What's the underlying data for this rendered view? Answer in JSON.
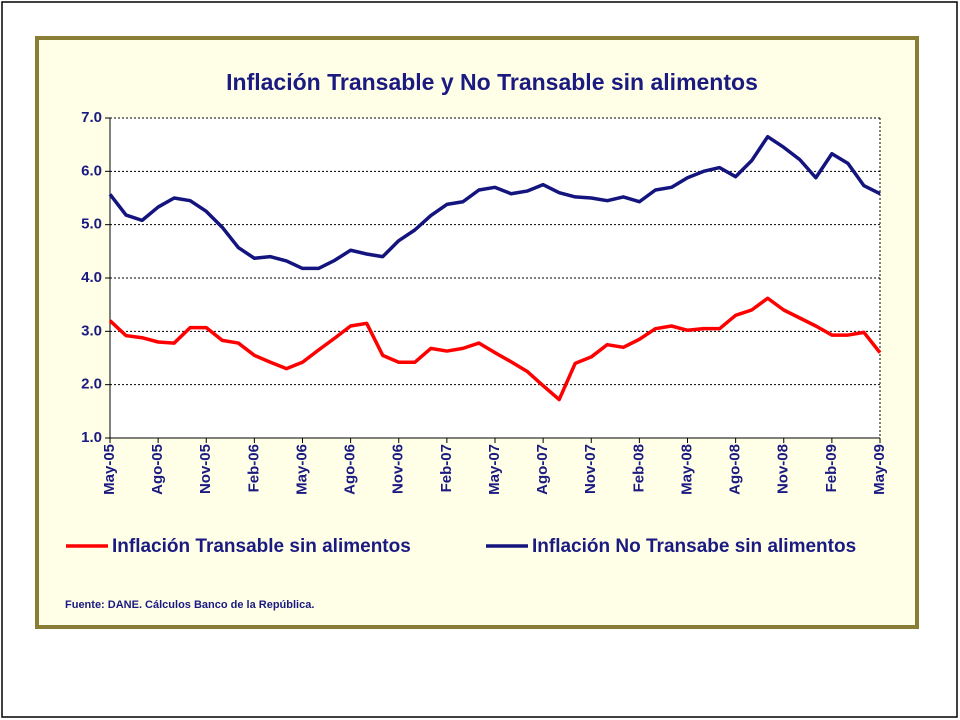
{
  "chart_data": {
    "type": "line",
    "title": "Inflación Transable y No Transable sin alimentos",
    "source": "Fuente: DANE. Cálculos Banco de la República.",
    "categories": [
      "May-05",
      null,
      null,
      "Ago-05",
      null,
      null,
      "Nov-05",
      null,
      null,
      "Feb-06",
      null,
      null,
      "May-06",
      null,
      null,
      "Ago-06",
      null,
      null,
      "Nov-06",
      null,
      null,
      "Feb-07",
      null,
      null,
      "May-07",
      null,
      null,
      "Ago-07",
      null,
      null,
      "Nov-07",
      null,
      null,
      "Feb-08",
      null,
      null,
      "May-08",
      null,
      null,
      "Ago-08",
      null,
      null,
      "Nov-08",
      null,
      null,
      "Feb-09",
      null,
      null,
      "May-09"
    ],
    "series": [
      {
        "name": "Inflación Transable sin alimentos",
        "color": "#ff0000",
        "values": [
          3.2,
          2.92,
          2.88,
          2.8,
          2.78,
          3.07,
          3.07,
          2.83,
          2.78,
          2.55,
          2.42,
          2.3,
          2.42,
          2.65,
          2.87,
          3.1,
          3.15,
          2.55,
          2.42,
          2.42,
          2.68,
          2.63,
          2.68,
          2.78,
          2.6,
          2.43,
          2.25,
          1.98,
          1.72,
          2.4,
          2.52,
          2.75,
          2.7,
          2.85,
          3.05,
          3.1,
          3.02,
          3.05,
          3.05,
          3.3,
          3.4,
          3.62,
          3.4,
          3.25,
          3.1,
          2.93,
          2.93,
          2.98,
          2.6
        ]
      },
      {
        "name": "Inflación No Transabe sin alimentos",
        "color": "#14147f",
        "values": [
          5.57,
          5.18,
          5.08,
          5.33,
          5.5,
          5.45,
          5.25,
          4.95,
          4.57,
          4.37,
          4.4,
          4.32,
          4.18,
          4.18,
          4.33,
          4.52,
          4.45,
          4.4,
          4.7,
          4.9,
          5.17,
          5.38,
          5.43,
          5.65,
          5.7,
          5.58,
          5.63,
          5.75,
          5.6,
          5.52,
          5.5,
          5.45,
          5.52,
          5.43,
          5.65,
          5.7,
          5.88,
          6.0,
          6.07,
          5.9,
          6.2,
          6.65,
          6.45,
          6.22,
          5.88,
          6.33,
          6.15,
          5.73,
          5.58
        ]
      }
    ],
    "ylim": [
      1,
      7
    ],
    "yticks": [
      {
        "value": 1,
        "label": "1.0"
      },
      {
        "value": 2,
        "label": "2.0"
      },
      {
        "value": 3,
        "label": "3.0"
      },
      {
        "value": 4,
        "label": "4.0"
      },
      {
        "value": 5,
        "label": "5.0"
      },
      {
        "value": 6,
        "label": "6.0"
      },
      {
        "value": 7,
        "label": "7.0"
      }
    ],
    "grid": true,
    "legend": "bottom"
  }
}
